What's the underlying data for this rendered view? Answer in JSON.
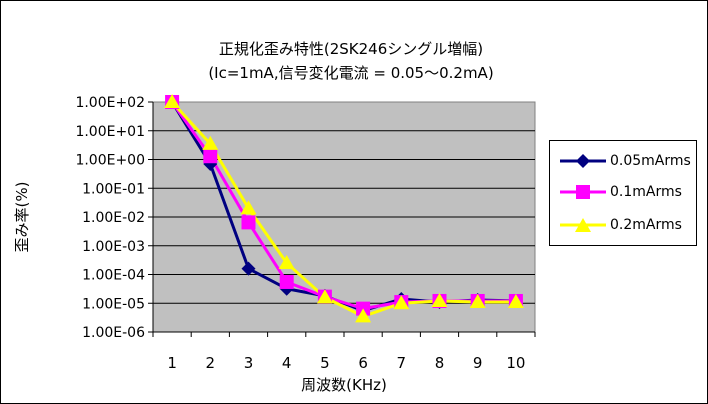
{
  "chart_data": {
    "type": "line",
    "title": "正規化歪み特性(2SK246シングル増幅)",
    "subtitle": "(Ic=1mA,信号変化電流 = 0.05～0.2mA)",
    "xlabel": "周波数(KHz)",
    "ylabel": "歪み率(%)",
    "y_scale": "log",
    "ylim": [
      1e-06,
      100
    ],
    "y_tick_labels": [
      "1.00E+02",
      "1.00E+01",
      "1.00E+00",
      "1.00E-01",
      "1.00E-02",
      "1.00E-03",
      "1.00E-04",
      "1.00E-05",
      "1.00E-06"
    ],
    "categories": [
      "1",
      "2",
      "3",
      "4",
      "5",
      "6",
      "7",
      "8",
      "9",
      "10"
    ],
    "grid": true,
    "legend_position": "right",
    "plot_background": "#C0C0C0",
    "series": [
      {
        "name": "0.05mArms",
        "color": "#000080",
        "marker": "diamond",
        "values": [
          100,
          0.7,
          0.00016,
          3.2e-05,
          1.8e-05,
          5.5e-06,
          1.4e-05,
          1.1e-05,
          1.3e-05,
          1.2e-05
        ]
      },
      {
        "name": "0.1mArms",
        "color": "#FF00FF",
        "marker": "square",
        "values": [
          100,
          1.3,
          0.0065,
          5.5e-05,
          1.7e-05,
          6.5e-06,
          1.1e-05,
          1.2e-05,
          1.2e-05,
          1.2e-05
        ]
      },
      {
        "name": "0.2mArms",
        "color": "#FFFF00",
        "marker": "triangle",
        "values": [
          100,
          3.5,
          0.02,
          0.00025,
          1.6e-05,
          3.5e-06,
          1e-05,
          1.2e-05,
          1.1e-05,
          1.1e-05
        ]
      }
    ]
  }
}
